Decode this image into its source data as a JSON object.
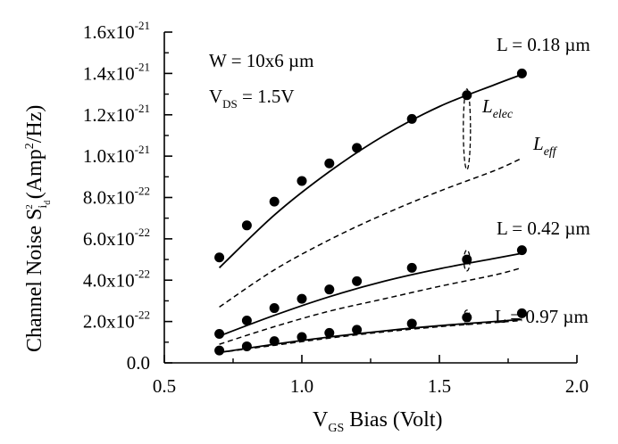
{
  "chart_data": {
    "type": "scatter",
    "title": "",
    "xlabel": {
      "main": "V",
      "sub": "GS",
      "rest": " Bias (Volt)"
    },
    "ylabel": {
      "main": "Channel Noise  S",
      "sub": "i",
      "subsub": "d",
      "sup": "2",
      "rest": " (Amp",
      "sup2": "2",
      "rest2": "/Hz)"
    },
    "xlim": [
      0.5,
      2.0
    ],
    "ylim": [
      0.0,
      1.6e-21
    ],
    "x_ticks": [
      0.5,
      1.0,
      1.5,
      2.0
    ],
    "x_tick_labels": [
      "0.5",
      "1.0",
      "1.5",
      "2.0"
    ],
    "y_ticks": [
      0.0,
      2e-22,
      4e-22,
      6e-22,
      8e-22,
      1e-21,
      1.2e-21,
      1.4e-21,
      1.6e-21
    ],
    "y_tick_labels": [
      {
        "text": "0.0",
        "exp": ""
      },
      {
        "text": "2.0x10",
        "exp": "-22"
      },
      {
        "text": "4.0x10",
        "exp": "-22"
      },
      {
        "text": "6.0x10",
        "exp": "-22"
      },
      {
        "text": "8.0x10",
        "exp": "-22"
      },
      {
        "text": "1.0x10",
        "exp": "-21"
      },
      {
        "text": "1.2x10",
        "exp": "-21"
      },
      {
        "text": "1.4x10",
        "exp": "-21"
      },
      {
        "text": "1.6x10",
        "exp": "-21"
      }
    ],
    "grid": false,
    "series": [
      {
        "group": "L = 0.18 µm",
        "measured": {
          "x": [
            0.7,
            0.8,
            0.9,
            1.0,
            1.1,
            1.2,
            1.4,
            1.6,
            1.8
          ],
          "y": [
            5.1e-22,
            6.65e-22,
            7.8e-22,
            8.8e-22,
            9.65e-22,
            1.04e-21,
            1.18e-21,
            1.295e-21,
            1.4e-21
          ]
        },
        "L_elec": {
          "x": [
            0.7,
            0.9,
            1.1,
            1.3,
            1.5,
            1.7,
            1.8
          ],
          "y": [
            4.6e-22,
            7.15e-22,
            9.25e-22,
            1.1e-21,
            1.24e-21,
            1.345e-21,
            1.395e-21
          ]
        },
        "L_eff": {
          "x": [
            0.7,
            0.9,
            1.1,
            1.3,
            1.5,
            1.7,
            1.8
          ],
          "y": [
            2.7e-22,
            4.5e-22,
            5.95e-22,
            7.2e-22,
            8.3e-22,
            9.3e-22,
            9.9e-22
          ]
        }
      },
      {
        "group": "L = 0.42 µm",
        "measured": {
          "x": [
            0.7,
            0.8,
            0.9,
            1.0,
            1.1,
            1.2,
            1.4,
            1.6,
            1.8
          ],
          "y": [
            1.4e-22,
            2.05e-22,
            2.65e-22,
            3.1e-22,
            3.55e-22,
            3.95e-22,
            4.6e-22,
            5e-22,
            5.45e-22
          ]
        },
        "L_elec": {
          "x": [
            0.7,
            0.9,
            1.1,
            1.3,
            1.5,
            1.7,
            1.8
          ],
          "y": [
            1.3e-22,
            2.3e-22,
            3.2e-22,
            3.95e-22,
            4.55e-22,
            5.05e-22,
            5.3e-22
          ]
        },
        "L_eff": {
          "x": [
            0.7,
            0.9,
            1.1,
            1.3,
            1.5,
            1.7,
            1.8
          ],
          "y": [
            9e-23,
            1.75e-22,
            2.5e-22,
            3.1e-22,
            3.7e-22,
            4.25e-22,
            4.6e-22
          ]
        }
      },
      {
        "group": "L = 0.97 µm",
        "measured": {
          "x": [
            0.7,
            0.8,
            0.9,
            1.0,
            1.1,
            1.2,
            1.4,
            1.6,
            1.8
          ],
          "y": [
            6e-23,
            8e-23,
            1.05e-22,
            1.25e-22,
            1.45e-22,
            1.6e-22,
            1.9e-22,
            2.2e-22,
            2.4e-22
          ]
        },
        "L_elec": {
          "x": [
            0.7,
            0.9,
            1.1,
            1.3,
            1.5,
            1.7,
            1.8
          ],
          "y": [
            5e-23,
            9e-23,
            1.25e-22,
            1.55e-22,
            1.8e-22,
            2e-22,
            2.1e-22
          ]
        },
        "L_eff": {
          "x": [
            0.7,
            0.9,
            1.1,
            1.3,
            1.5,
            1.7,
            1.8
          ],
          "y": [
            5e-23,
            8.5e-23,
            1.2e-22,
            1.5e-22,
            1.75e-22,
            1.95e-22,
            2.05e-22
          ]
        }
      }
    ],
    "ellipses": [
      {
        "cx": 1.6,
        "cy": 1.13e-21,
        "rx": 0.013,
        "ry": 1.95e-22
      },
      {
        "cx": 1.6,
        "cy": 4.95e-22,
        "rx": 0.011,
        "ry": 5e-23
      },
      {
        "cx": 1.6,
        "cy": 2.2e-22,
        "rx": 0.011,
        "ry": 3.5e-23
      }
    ],
    "annotations": {
      "width": "W = 10x6 µm",
      "vds_main": "V",
      "vds_sub": "DS",
      "vds_rest": " = 1.5V",
      "l018": "L = 0.18 µm",
      "l042": "L = 0.42 µm",
      "l097": "L = 0.97 µm",
      "lelec_main": "L",
      "lelec_sub": "elec",
      "leff_main": "L",
      "leff_sub": "eff"
    }
  }
}
